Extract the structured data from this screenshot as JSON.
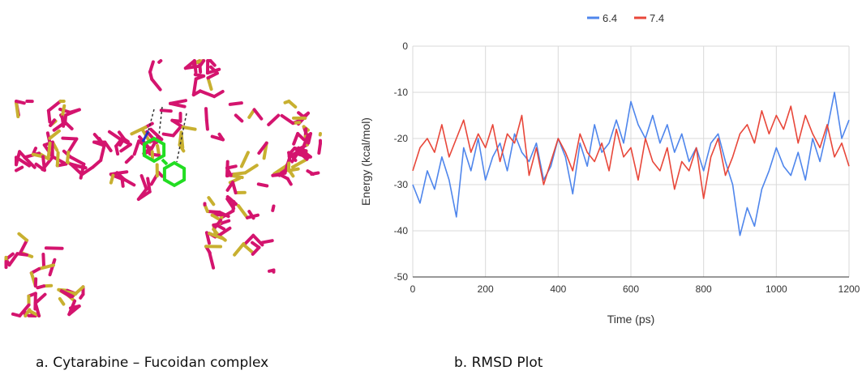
{
  "captions": {
    "left": "a. Cytarabine – Fucoidan complex",
    "right": "b. RMSD Plot"
  },
  "colors": {
    "series_64": "#4f86ec",
    "series_74": "#e8473a",
    "molecule_main": "#d4146e",
    "molecule_sulfate": "#c8b030",
    "ligand": "#22dd22"
  },
  "chart_data": {
    "type": "line",
    "title": "",
    "xlabel": "Time (ps)",
    "ylabel": "Energy (kcal/mol)",
    "xlim": [
      0,
      1200
    ],
    "ylim": [
      -50,
      0
    ],
    "xticks": [
      0,
      200,
      400,
      600,
      800,
      1000,
      1200
    ],
    "yticks": [
      0,
      -10,
      -20,
      -30,
      -40,
      -50
    ],
    "xtick_labels": [
      "0",
      "200",
      "400",
      "600",
      "800",
      "1000",
      "1200"
    ],
    "ytick_labels": [
      "0",
      "-10",
      "-20",
      "-30",
      "-40",
      "-50"
    ],
    "grid": true,
    "legend": "top-center",
    "x": [
      0,
      20,
      40,
      60,
      80,
      100,
      120,
      140,
      160,
      180,
      200,
      220,
      240,
      260,
      280,
      300,
      320,
      340,
      360,
      380,
      400,
      420,
      440,
      460,
      480,
      500,
      520,
      540,
      560,
      580,
      600,
      620,
      640,
      660,
      680,
      700,
      720,
      740,
      760,
      780,
      800,
      820,
      840,
      860,
      880,
      900,
      920,
      940,
      960,
      980,
      1000,
      1020,
      1040,
      1060,
      1080,
      1100,
      1120,
      1140,
      1160,
      1180,
      1200
    ],
    "series": [
      {
        "name": "6.4",
        "values": [
          -30,
          -34,
          -27,
          -31,
          -24,
          -29,
          -37,
          -22,
          -27,
          -20,
          -29,
          -24,
          -21,
          -27,
          -19,
          -23,
          -25,
          -21,
          -29,
          -26,
          -20,
          -24,
          -32,
          -21,
          -26,
          -17,
          -23,
          -21,
          -16,
          -21,
          -12,
          -17,
          -20,
          -15,
          -21,
          -17,
          -23,
          -19,
          -25,
          -22,
          -27,
          -21,
          -19,
          -25,
          -30,
          -41,
          -35,
          -39,
          -31,
          -27,
          -22,
          -26,
          -28,
          -23,
          -29,
          -20,
          -25,
          -18,
          -10,
          -20,
          -16
        ]
      },
      {
        "name": "7.4",
        "values": [
          -27,
          -22,
          -20,
          -23,
          -17,
          -24,
          -20,
          -16,
          -23,
          -19,
          -22,
          -17,
          -25,
          -19,
          -21,
          -15,
          -28,
          -22,
          -30,
          -25,
          -20,
          -23,
          -27,
          -19,
          -23,
          -25,
          -21,
          -27,
          -18,
          -24,
          -22,
          -29,
          -20,
          -25,
          -27,
          -22,
          -31,
          -25,
          -27,
          -22,
          -33,
          -24,
          -20,
          -28,
          -24,
          -19,
          -17,
          -21,
          -14,
          -19,
          -15,
          -18,
          -13,
          -21,
          -15,
          -19,
          -22,
          -17,
          -24,
          -21,
          -26
        ]
      }
    ]
  }
}
